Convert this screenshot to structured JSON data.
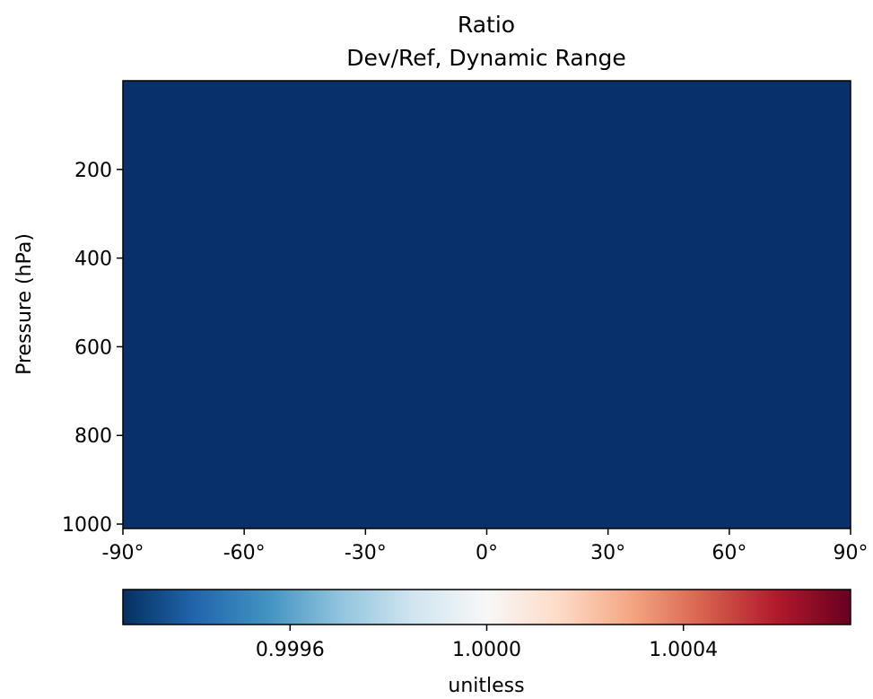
{
  "chart_data": {
    "type": "heatmap",
    "title": "Ratio",
    "subtitle": "Dev/Ref, Dynamic Range",
    "xlabel": "",
    "ylabel": "Pressure (hPa)",
    "xlim": [
      -90,
      90
    ],
    "ylim": [
      1010,
      0
    ],
    "x_ticks": [
      -90,
      -60,
      -30,
      0,
      30,
      60,
      90
    ],
    "x_tick_labels": [
      "-90°",
      "-60°",
      "-30°",
      "0°",
      "30°",
      "60°",
      "90°"
    ],
    "y_ticks": [
      200,
      400,
      600,
      800,
      1000
    ],
    "y_tick_labels": [
      "200",
      "400",
      "600",
      "800",
      "1000"
    ],
    "field_color": "#08306b",
    "colorbar": {
      "label": "unitless",
      "vmin": 0.99926,
      "vmax": 1.00074,
      "ticks": [
        0.9996,
        1.0,
        1.0004
      ],
      "tick_labels": [
        "0.9996",
        "1.0000",
        "1.0004"
      ],
      "colormap": "RdBu_r",
      "stops": [
        "#053061",
        "#2166ac",
        "#4393c3",
        "#92c5de",
        "#d1e5f0",
        "#f7f7f7",
        "#fddbc7",
        "#f4a582",
        "#d6604d",
        "#b2182b",
        "#67001f"
      ]
    }
  }
}
